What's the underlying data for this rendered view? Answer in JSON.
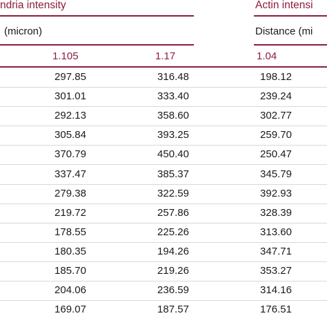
{
  "table": {
    "group_headers": [
      {
        "label": "ndria intensity"
      },
      {
        "label": "Actin intensi"
      }
    ],
    "sub_headers": [
      {
        "label": "(micron)"
      },
      {
        "label": "Distance (mi"
      }
    ],
    "columns": [
      "1.105",
      "1.17",
      "1.04"
    ],
    "rows": [
      [
        "297.85",
        "316.48",
        "198.12"
      ],
      [
        "301.01",
        "333.40",
        "239.24"
      ],
      [
        "292.13",
        "358.60",
        "302.77"
      ],
      [
        "305.84",
        "393.25",
        "259.70"
      ],
      [
        "370.79",
        "450.40",
        "250.47"
      ],
      [
        "337.47",
        "385.37",
        "345.79"
      ],
      [
        "279.38",
        "322.59",
        "392.93"
      ],
      [
        "219.72",
        "257.86",
        "328.39"
      ],
      [
        "178.55",
        "225.26",
        "313.60"
      ],
      [
        "180.35",
        "194.26",
        "347.71"
      ],
      [
        "185.70",
        "219.26",
        "353.27"
      ],
      [
        "204.06",
        "236.59",
        "314.16"
      ],
      [
        "169.07",
        "187.57",
        "176.51"
      ]
    ]
  }
}
